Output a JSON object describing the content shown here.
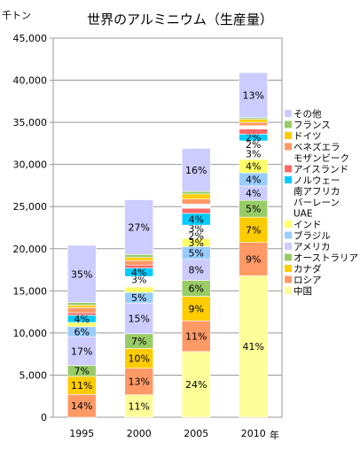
{
  "chart_data": {
    "type": "bar",
    "stacked": true,
    "title": "世界のアルミニウム（生産量）",
    "ylabel": "千トン",
    "xlabel": "年",
    "categories": [
      "1995",
      "2000",
      "2005",
      "2010"
    ],
    "ylim": [
      0,
      45000
    ],
    "yticks": [
      0,
      5000,
      10000,
      15000,
      20000,
      25000,
      30000,
      35000,
      40000,
      45000
    ],
    "ytick_labels": [
      "0",
      "5,000",
      "10,000",
      "15,000",
      "20,000",
      "25,000",
      "30,000",
      "35,000",
      "40,000",
      "45,000"
    ],
    "grid": true,
    "legend_position": "right",
    "series": [
      {
        "name": "中国",
        "color": "#ffff99",
        "values": [
          0,
          2660,
          7800,
          16800
        ],
        "labels": [
          "",
          "11%",
          "24%",
          "41%"
        ]
      },
      {
        "name": "ロシア",
        "color": "#ff9966",
        "values": [
          2700,
          3150,
          3650,
          3950
        ],
        "labels": [
          "14%",
          "13%",
          "11%",
          "9%"
        ]
      },
      {
        "name": "カナダ",
        "color": "#ffcc00",
        "values": [
          2150,
          2350,
          2900,
          3000
        ],
        "labels": [
          "11%",
          "10%",
          "9%",
          "7%"
        ]
      },
      {
        "name": "オーストラリア",
        "color": "#99cc66",
        "values": [
          1300,
          1750,
          1900,
          2000
        ],
        "labels": [
          "7%",
          "7%",
          "6%",
          "5%"
        ]
      },
      {
        "name": "アメリカ",
        "color": "#ccccff",
        "values": [
          3400,
          3650,
          2500,
          1700
        ],
        "labels": [
          "17%",
          "15%",
          "8%",
          "4%"
        ]
      },
      {
        "name": "ブラジル",
        "color": "#99ccff",
        "values": [
          1200,
          1250,
          1500,
          1550
        ],
        "labels": [
          "6%",
          "5%",
          "5%",
          "4%"
        ]
      },
      {
        "name": "インド",
        "color": "#ffff66",
        "values": [
          500,
          650,
          950,
          1600
        ],
        "labels": [
          "",
          "",
          "3%",
          "4%"
        ]
      },
      {
        "name": "UAE",
        "color": "#ffffff",
        "values": [
          0,
          0,
          0,
          1400
        ],
        "labels": [
          "",
          "",
          "",
          "3%"
        ]
      },
      {
        "name": "バーレーン",
        "color": "#ffffff",
        "values": [
          0,
          550,
          750,
          0
        ],
        "labels": [
          "",
          "",
          "2%",
          ""
        ]
      },
      {
        "name": "南アフリカ",
        "color": "#ffffff",
        "values": [
          0,
          700,
          850,
          800
        ],
        "labels": [
          "",
          "3%",
          "3%",
          "2%"
        ]
      },
      {
        "name": "ノルウェー",
        "color": "#00ccff",
        "values": [
          850,
          1000,
          1400,
          800
        ],
        "labels": [
          "4%",
          "4%",
          "4%",
          "2%"
        ]
      },
      {
        "name": "アイスランド",
        "color": "#ff6666",
        "values": [
          300,
          350,
          600,
          600
        ],
        "labels": [
          "",
          "",
          "",
          ""
        ]
      },
      {
        "name": "モザンビーク",
        "color": "#ffffff",
        "values": [
          0,
          0,
          500,
          400
        ],
        "labels": [
          "",
          "",
          "",
          ""
        ]
      },
      {
        "name": "ベネズエラ",
        "color": "#ff9966",
        "values": [
          600,
          550,
          600,
          400
        ],
        "labels": [
          "",
          "",
          "",
          ""
        ]
      },
      {
        "name": "ドイツ",
        "color": "#ffcc00",
        "values": [
          300,
          350,
          600,
          350
        ],
        "labels": [
          "",
          "",
          "",
          ""
        ]
      },
      {
        "name": "フランス",
        "color": "#99cc66",
        "values": [
          300,
          350,
          300,
          200
        ],
        "labels": [
          "",
          "",
          "",
          ""
        ]
      },
      {
        "name": "その他",
        "color": "#ccccff",
        "values": [
          6800,
          6500,
          5100,
          5350
        ],
        "labels": [
          "35%",
          "27%",
          "16%",
          "13%"
        ]
      }
    ]
  }
}
